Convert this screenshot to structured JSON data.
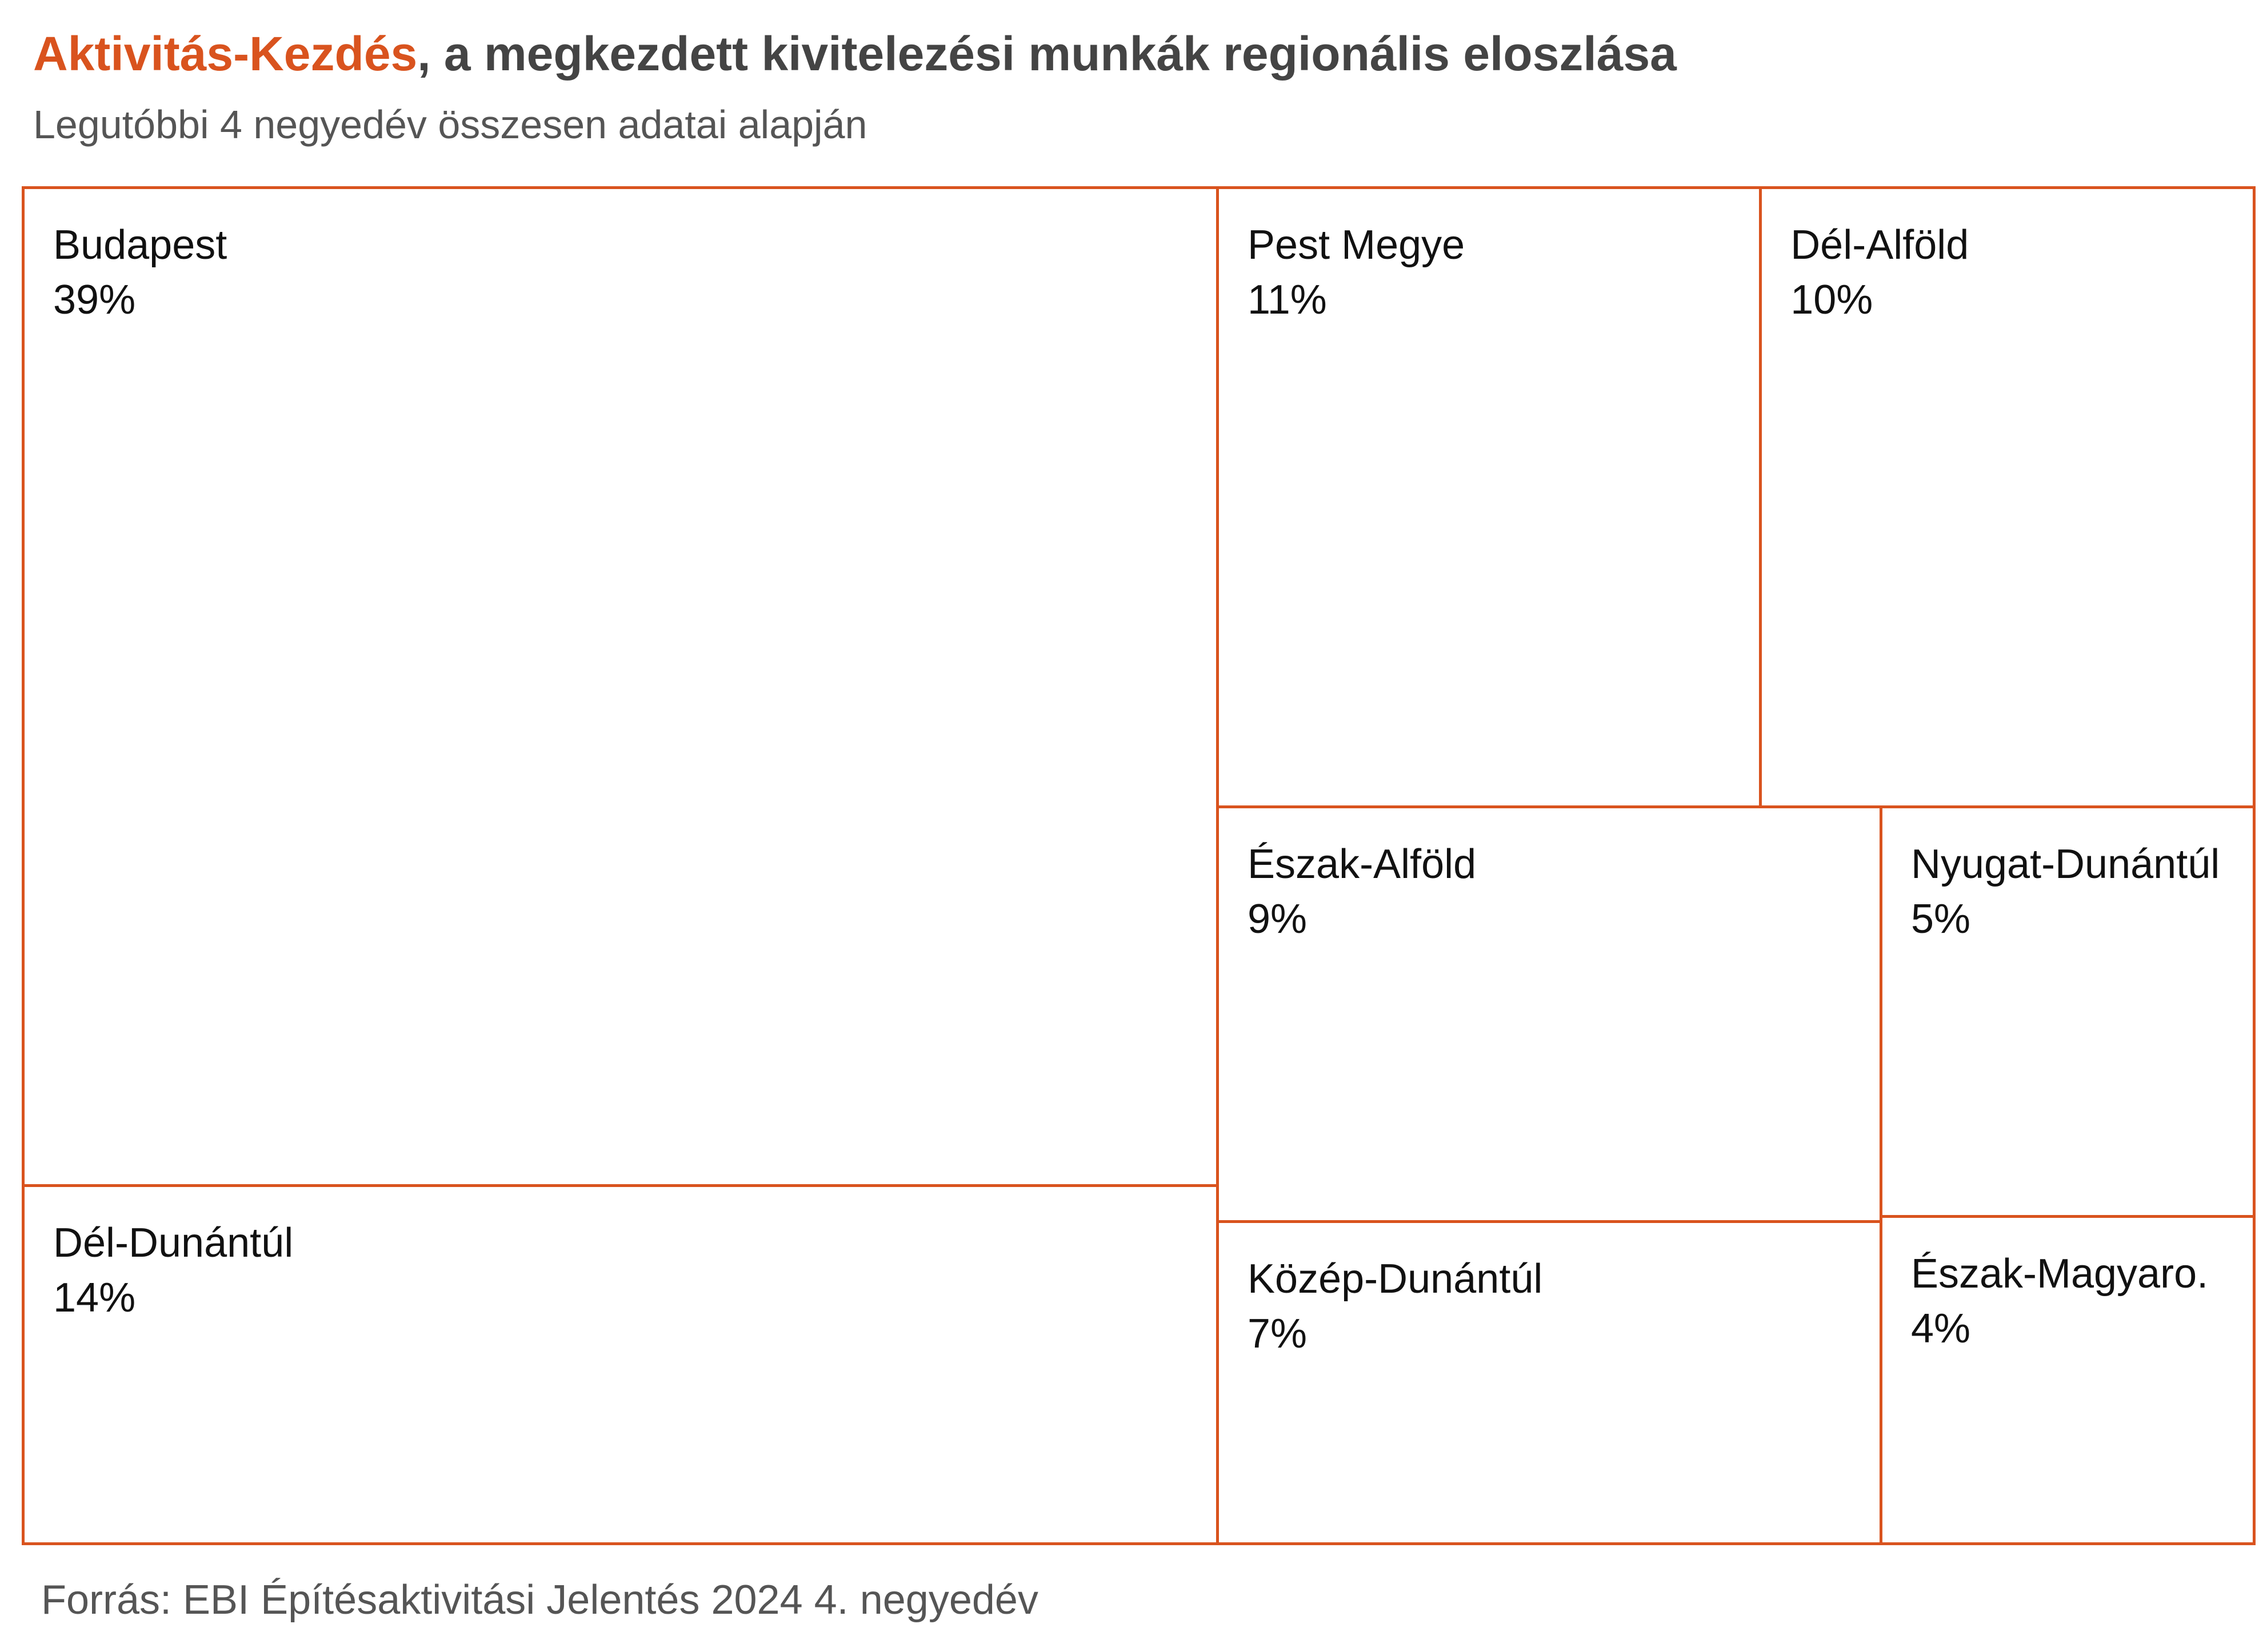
{
  "title": {
    "highlight": "Aktivitás-Kezdés",
    "rest": ", a megkezdett kivitelezési munkák regionális eloszlása"
  },
  "subtitle": "Legutóbbi 4 negyedév összesen adatai alapján",
  "source": "Forrás: EBI Építésaktivitási Jelentés 2024 4. negyedév",
  "colors": {
    "accent": "#d9531e",
    "border": "#d9531e"
  },
  "chart_data": {
    "type": "treemap",
    "unit": "%",
    "items": [
      {
        "label": "Budapest",
        "value": 39
      },
      {
        "label": "Dél-Dunántúl",
        "value": 14
      },
      {
        "label": "Pest Megye",
        "value": 11
      },
      {
        "label": "Dél-Alföld",
        "value": 10
      },
      {
        "label": "Észak-Alföld",
        "value": 9
      },
      {
        "label": "Közép-Dunántúl",
        "value": 7
      },
      {
        "label": "Nyugat-Dunántúl",
        "value": 5
      },
      {
        "label": "Észak-Magyaro.",
        "value": 4
      }
    ]
  }
}
